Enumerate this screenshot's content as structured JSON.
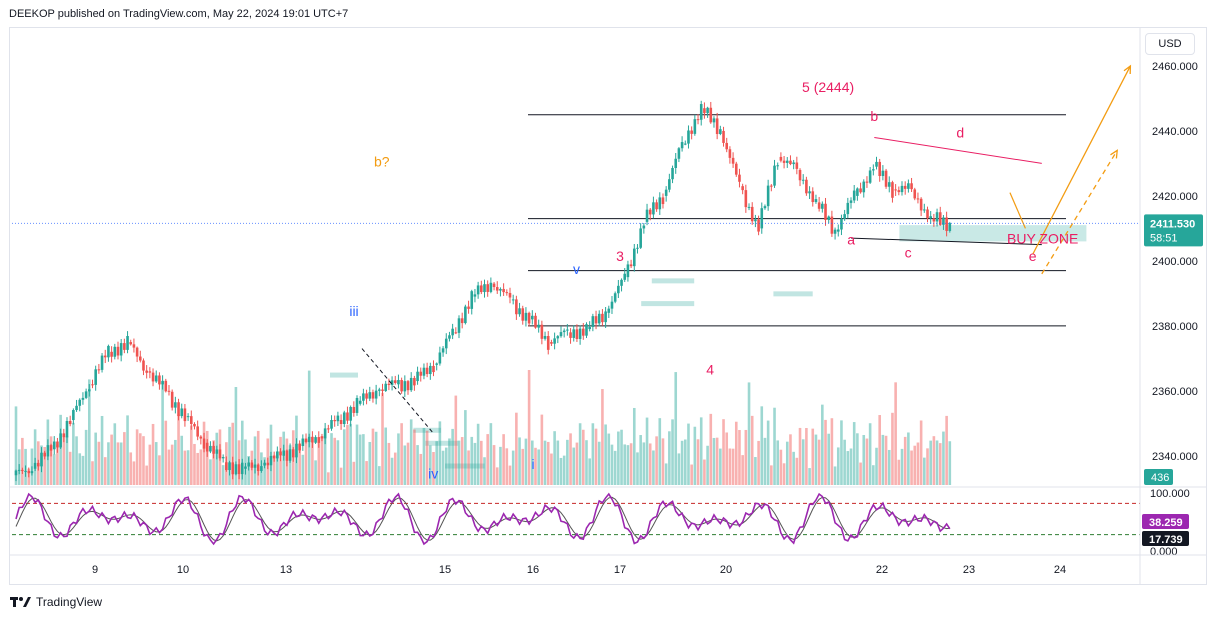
{
  "header": {
    "published": "DEEKOP published on TradingView.com, May 22, 2024 19:01 UTC+7"
  },
  "footer": {
    "brand": "TradingView"
  },
  "currency": "USD",
  "colors": {
    "up": "#26a69a",
    "down": "#ef5350",
    "pink": "#e91e63",
    "orange": "#f39c12",
    "blue": "#2962ff",
    "stoch_k": "#9c27b0",
    "stoch_d": "#555555",
    "zone": "#b2dfdb"
  },
  "chart_data": {
    "type": "candlestick",
    "symbol_price_axis": {
      "ylim": [
        2331,
        2468
      ],
      "ticks": [
        2460,
        2440,
        2420,
        2400,
        2380,
        2360,
        2340
      ],
      "tick_labels": [
        "2460.000",
        "2440.000",
        "2420.000",
        "2400.000",
        "2380.000",
        "2360.000",
        "2340.000"
      ]
    },
    "x_axis": {
      "labels": [
        "9",
        "10",
        "13",
        "15",
        "16",
        "17",
        "20",
        "22",
        "23",
        "24"
      ],
      "label_positions_index": [
        0,
        1,
        2,
        4,
        5,
        6,
        7,
        9,
        10,
        11
      ]
    },
    "last_price": {
      "value": "2411.530",
      "countdown": "58:51"
    },
    "volume_label": "436",
    "stoch": {
      "ticks": [
        "100.000",
        "0.000"
      ],
      "k_value": "38.259",
      "d_value": "17.739",
      "upper": 80,
      "lower": 20
    },
    "wave_labels": [
      {
        "text": "i",
        "x": 5,
        "price": 2336,
        "color": "blue"
      },
      {
        "text": "iii",
        "x": 2.85,
        "price": 2383,
        "color": "blue"
      },
      {
        "text": "iv",
        "x": 3.85,
        "price": 2333,
        "color": "blue"
      },
      {
        "text": "v",
        "x": 5.5,
        "price": 2396,
        "color": "blue"
      },
      {
        "text": "b?",
        "x": 3.2,
        "price": 2429,
        "color": "orange"
      },
      {
        "text": "3",
        "x": 6.0,
        "price": 2400,
        "color": "pink"
      },
      {
        "text": "4",
        "x": 6.85,
        "price": 2365,
        "color": "pink"
      },
      {
        "text": "5 (2444)",
        "x": 8.3,
        "price": 2452,
        "color": "pink"
      },
      {
        "text": "a",
        "x": 8.6,
        "price": 2405,
        "color": "pink"
      },
      {
        "text": "b",
        "x": 8.9,
        "price": 2443,
        "color": "pink"
      },
      {
        "text": "c",
        "x": 9.3,
        "price": 2401,
        "color": "pink"
      },
      {
        "text": "d",
        "x": 9.9,
        "price": 2438,
        "color": "pink"
      },
      {
        "text": "e",
        "x": 10.7,
        "price": 2400,
        "color": "pink"
      }
    ],
    "zone_label": "BUY ZONE",
    "horizontal_levels": [
      2445,
      2413,
      2397,
      2380
    ],
    "triangle": {
      "upper": [
        [
          8.9,
          2438
        ],
        [
          10.8,
          2430
        ]
      ],
      "lower": [
        [
          8.6,
          2407
        ],
        [
          10.8,
          2405
        ]
      ]
    },
    "arrows": [
      {
        "style": "solid",
        "from": [
          10.7,
          2402
        ],
        "to": [
          11.8,
          2460
        ]
      },
      {
        "style": "dashed",
        "from": [
          10.8,
          2396
        ],
        "to": [
          11.65,
          2434
        ]
      }
    ],
    "buy_zone": {
      "x": [
        9.2,
        11.3
      ],
      "price": [
        2406,
        2411
      ]
    },
    "series": [
      {
        "name": "close",
        "values": [
          2336,
          2342,
          2351,
          2362,
          2372,
          2375,
          2366,
          2360,
          2352,
          2344,
          2338,
          2336,
          2337,
          2340,
          2343,
          2346,
          2351,
          2356,
          2360,
          2362,
          2363,
          2368,
          2378,
          2389,
          2393,
          2388,
          2382,
          2375,
          2378,
          2379,
          2384,
          2395,
          2412,
          2420,
          2436,
          2447,
          2440,
          2423,
          2410,
          2432,
          2428,
          2418,
          2409,
          2420,
          2429,
          2422,
          2422,
          2413,
          2411
        ]
      }
    ]
  }
}
